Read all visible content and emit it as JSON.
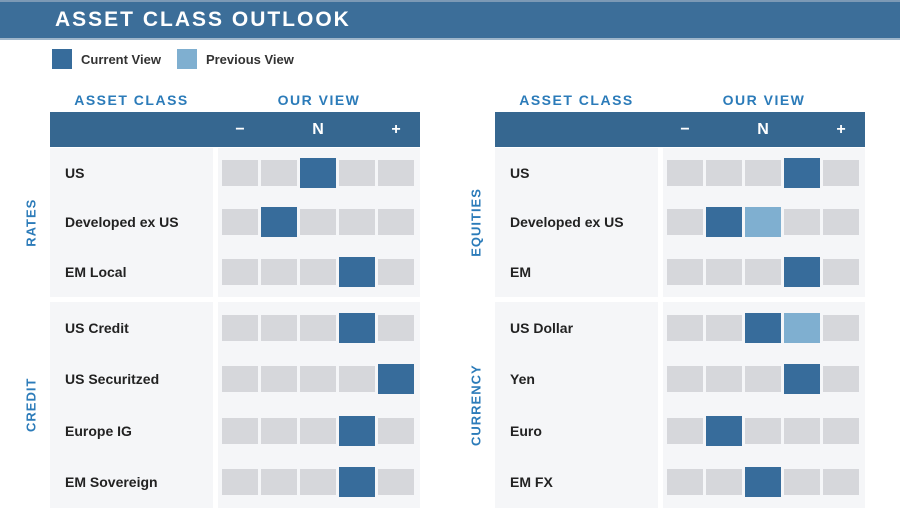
{
  "title": "ASSET CLASS OUTLOOK",
  "legend": {
    "current_label": "Current View",
    "previous_label": "Previous View"
  },
  "colors": {
    "banner": "#3C6E99",
    "scale_bar": "#366790",
    "current_view": "#376C9B",
    "previous_view": "#7FAFD0",
    "empty_cell": "#D6D7DB",
    "band_bg": "#F5F6F8",
    "heading_blue": "#2B7BB9"
  },
  "scale": {
    "minus": "−",
    "neutral": "N",
    "plus": "+",
    "positions": 5
  },
  "panels": [
    {
      "asset_class_header": "ASSET CLASS",
      "our_view_header": "OUR VIEW",
      "sections": [
        {
          "name": "RATES",
          "rows": [
            {
              "label": "US",
              "current": 3,
              "previous": null
            },
            {
              "label": "Developed ex US",
              "current": 2,
              "previous": null
            },
            {
              "label": "EM Local",
              "current": 4,
              "previous": null
            }
          ]
        },
        {
          "name": "CREDIT",
          "rows": [
            {
              "label": "US Credit",
              "current": 4,
              "previous": null
            },
            {
              "label": "US Securitzed",
              "current": 5,
              "previous": null
            },
            {
              "label": "Europe IG",
              "current": 4,
              "previous": null
            },
            {
              "label": "EM Sovereign",
              "current": 4,
              "previous": null
            }
          ]
        }
      ]
    },
    {
      "asset_class_header": "ASSET CLASS",
      "our_view_header": "OUR VIEW",
      "sections": [
        {
          "name": "EQUITIES",
          "rows": [
            {
              "label": "US",
              "current": 4,
              "previous": null
            },
            {
              "label": "Developed ex US",
              "current": 2,
              "previous": 3
            },
            {
              "label": "EM",
              "current": 4,
              "previous": null
            }
          ]
        },
        {
          "name": "CURRENCY",
          "rows": [
            {
              "label": "US Dollar",
              "current": 3,
              "previous": 4
            },
            {
              "label": "Yen",
              "current": 4,
              "previous": null
            },
            {
              "label": "Euro",
              "current": 2,
              "previous": null
            },
            {
              "label": "EM FX",
              "current": 3,
              "previous": null
            }
          ]
        }
      ]
    }
  ],
  "chart_data": {
    "type": "table",
    "title": "ASSET CLASS OUTLOOK",
    "scale_ticks": [
      "-",
      "",
      "N",
      "",
      "+"
    ],
    "scale_note": "positions 1-5 where 1 = most negative (-), 3 = neutral (N), 5 = most positive (+)",
    "legend": [
      "Current View",
      "Previous View"
    ],
    "groups": [
      {
        "group": "RATES",
        "rows": [
          {
            "asset": "US",
            "current_view": 3,
            "previous_view": null
          },
          {
            "asset": "Developed ex US",
            "current_view": 2,
            "previous_view": null
          },
          {
            "asset": "EM Local",
            "current_view": 4,
            "previous_view": null
          }
        ]
      },
      {
        "group": "CREDIT",
        "rows": [
          {
            "asset": "US Credit",
            "current_view": 4,
            "previous_view": null
          },
          {
            "asset": "US Securitzed",
            "current_view": 5,
            "previous_view": null
          },
          {
            "asset": "Europe IG",
            "current_view": 4,
            "previous_view": null
          },
          {
            "asset": "EM Sovereign",
            "current_view": 4,
            "previous_view": null
          }
        ]
      },
      {
        "group": "EQUITIES",
        "rows": [
          {
            "asset": "US",
            "current_view": 4,
            "previous_view": null
          },
          {
            "asset": "Developed ex US",
            "current_view": 2,
            "previous_view": 3
          },
          {
            "asset": "EM",
            "current_view": 4,
            "previous_view": null
          }
        ]
      },
      {
        "group": "CURRENCY",
        "rows": [
          {
            "asset": "US Dollar",
            "current_view": 3,
            "previous_view": 4
          },
          {
            "asset": "Yen",
            "current_view": 4,
            "previous_view": null
          },
          {
            "asset": "Euro",
            "current_view": 2,
            "previous_view": null
          },
          {
            "asset": "EM FX",
            "current_view": 3,
            "previous_view": null
          }
        ]
      }
    ]
  }
}
